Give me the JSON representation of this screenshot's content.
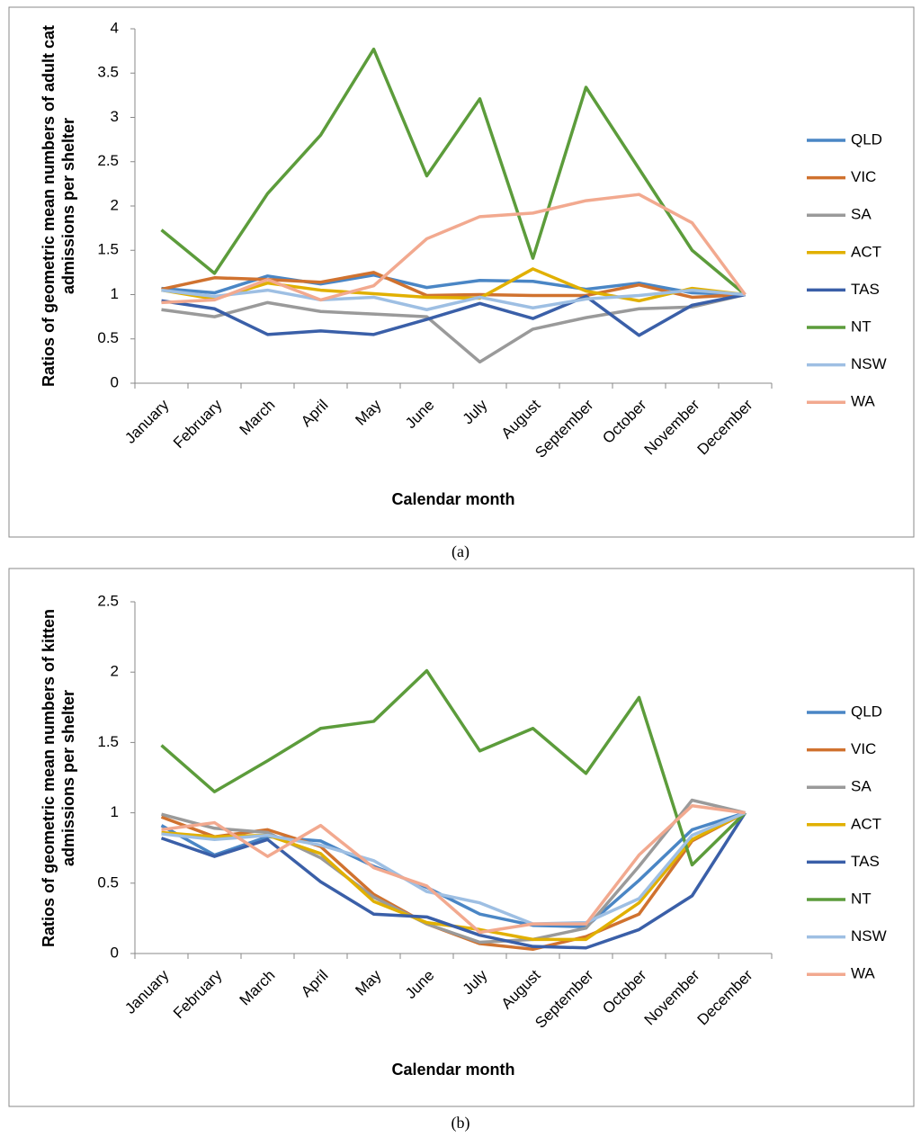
{
  "chart_data": [
    {
      "type": "line",
      "caption": "(a)",
      "xlabel": "Calendar month",
      "ylabel": [
        "Ratios of geometric mean numbers of adult cat",
        "admissions per shelter"
      ],
      "categories": [
        "January",
        "February",
        "March",
        "April",
        "May",
        "June",
        "July",
        "August",
        "September",
        "October",
        "November",
        "December"
      ],
      "ylim": [
        0,
        4
      ],
      "yticks": [
        0,
        0.5,
        1,
        1.5,
        2,
        2.5,
        3,
        3.5,
        4
      ],
      "legend": "right",
      "series": [
        {
          "name": "QLD",
          "color": "#4a86c5",
          "values": [
            1.07,
            1.02,
            1.21,
            1.12,
            1.22,
            1.08,
            1.16,
            1.15,
            1.06,
            1.13,
            1.02,
            1.0
          ]
        },
        {
          "name": "VIC",
          "color": "#d0722f",
          "values": [
            1.06,
            1.19,
            1.17,
            1.14,
            1.25,
            0.99,
            1.0,
            0.99,
            0.99,
            1.11,
            0.97,
            1.0
          ]
        },
        {
          "name": "SA",
          "color": "#9a9a9a",
          "values": [
            0.83,
            0.75,
            0.91,
            0.81,
            0.78,
            0.75,
            0.24,
            0.61,
            0.74,
            0.84,
            0.86,
            1.0
          ]
        },
        {
          "name": "ACT",
          "color": "#e1b000",
          "values": [
            1.05,
            0.95,
            1.13,
            1.05,
            1.01,
            0.97,
            0.96,
            1.29,
            1.04,
            0.93,
            1.07,
            1.0
          ]
        },
        {
          "name": "TAS",
          "color": "#3a5fa8",
          "values": [
            0.93,
            0.84,
            0.55,
            0.59,
            0.55,
            0.72,
            0.9,
            0.73,
            0.98,
            0.54,
            0.88,
            1.0
          ]
        },
        {
          "name": "NT",
          "color": "#5c9c3b",
          "values": [
            1.73,
            1.24,
            2.14,
            2.8,
            3.77,
            2.34,
            3.21,
            1.41,
            3.34,
            2.42,
            1.5,
            1.0
          ]
        },
        {
          "name": "NSW",
          "color": "#9ebfe3",
          "values": [
            1.05,
            0.98,
            1.05,
            0.94,
            0.97,
            0.83,
            0.97,
            0.85,
            0.95,
            0.99,
            1.05,
            1.0
          ]
        },
        {
          "name": "WA",
          "color": "#f2a98f",
          "values": [
            0.91,
            0.94,
            1.17,
            0.94,
            1.1,
            1.63,
            1.88,
            1.92,
            2.06,
            2.13,
            1.81,
            1.0
          ]
        }
      ]
    },
    {
      "type": "line",
      "caption": "(b)",
      "xlabel": "Calendar month",
      "ylabel": [
        "Ratios of geometric mean numbers of kitten",
        "admissions per shelter"
      ],
      "categories": [
        "January",
        "February",
        "March",
        "April",
        "May",
        "June",
        "July",
        "August",
        "September",
        "October",
        "November",
        "December"
      ],
      "ylim": [
        0,
        2.5
      ],
      "yticks": [
        0,
        0.5,
        1,
        1.5,
        2,
        2.5
      ],
      "legend": "right",
      "series": [
        {
          "name": "QLD",
          "color": "#4a86c5",
          "values": [
            0.91,
            0.7,
            0.83,
            0.8,
            0.62,
            0.47,
            0.28,
            0.2,
            0.19,
            0.52,
            0.88,
            1.0
          ]
        },
        {
          "name": "VIC",
          "color": "#d0722f",
          "values": [
            0.97,
            0.83,
            0.88,
            0.76,
            0.42,
            0.21,
            0.07,
            0.03,
            0.12,
            0.28,
            0.8,
            1.0
          ]
        },
        {
          "name": "SA",
          "color": "#9a9a9a",
          "values": [
            0.99,
            0.89,
            0.86,
            0.68,
            0.4,
            0.21,
            0.08,
            0.1,
            0.18,
            0.62,
            1.09,
            1.0
          ]
        },
        {
          "name": "ACT",
          "color": "#e1b000",
          "values": [
            0.86,
            0.83,
            0.84,
            0.71,
            0.37,
            0.22,
            0.17,
            0.1,
            0.1,
            0.36,
            0.81,
            1.0
          ]
        },
        {
          "name": "TAS",
          "color": "#3a5fa8",
          "values": [
            0.82,
            0.69,
            0.81,
            0.51,
            0.28,
            0.26,
            0.13,
            0.05,
            0.04,
            0.17,
            0.41,
            1.0
          ]
        },
        {
          "name": "NT",
          "color": "#5c9c3b",
          "values": [
            1.48,
            1.15,
            1.37,
            1.6,
            1.65,
            2.01,
            1.44,
            1.6,
            1.28,
            1.82,
            0.63,
            1.0
          ]
        },
        {
          "name": "NSW",
          "color": "#9ebfe3",
          "values": [
            0.85,
            0.81,
            0.84,
            0.77,
            0.66,
            0.44,
            0.36,
            0.21,
            0.22,
            0.39,
            0.84,
            1.0
          ]
        },
        {
          "name": "WA",
          "color": "#f2a98f",
          "values": [
            0.88,
            0.93,
            0.69,
            0.91,
            0.61,
            0.48,
            0.15,
            0.21,
            0.21,
            0.7,
            1.05,
            1.0
          ]
        }
      ]
    }
  ]
}
